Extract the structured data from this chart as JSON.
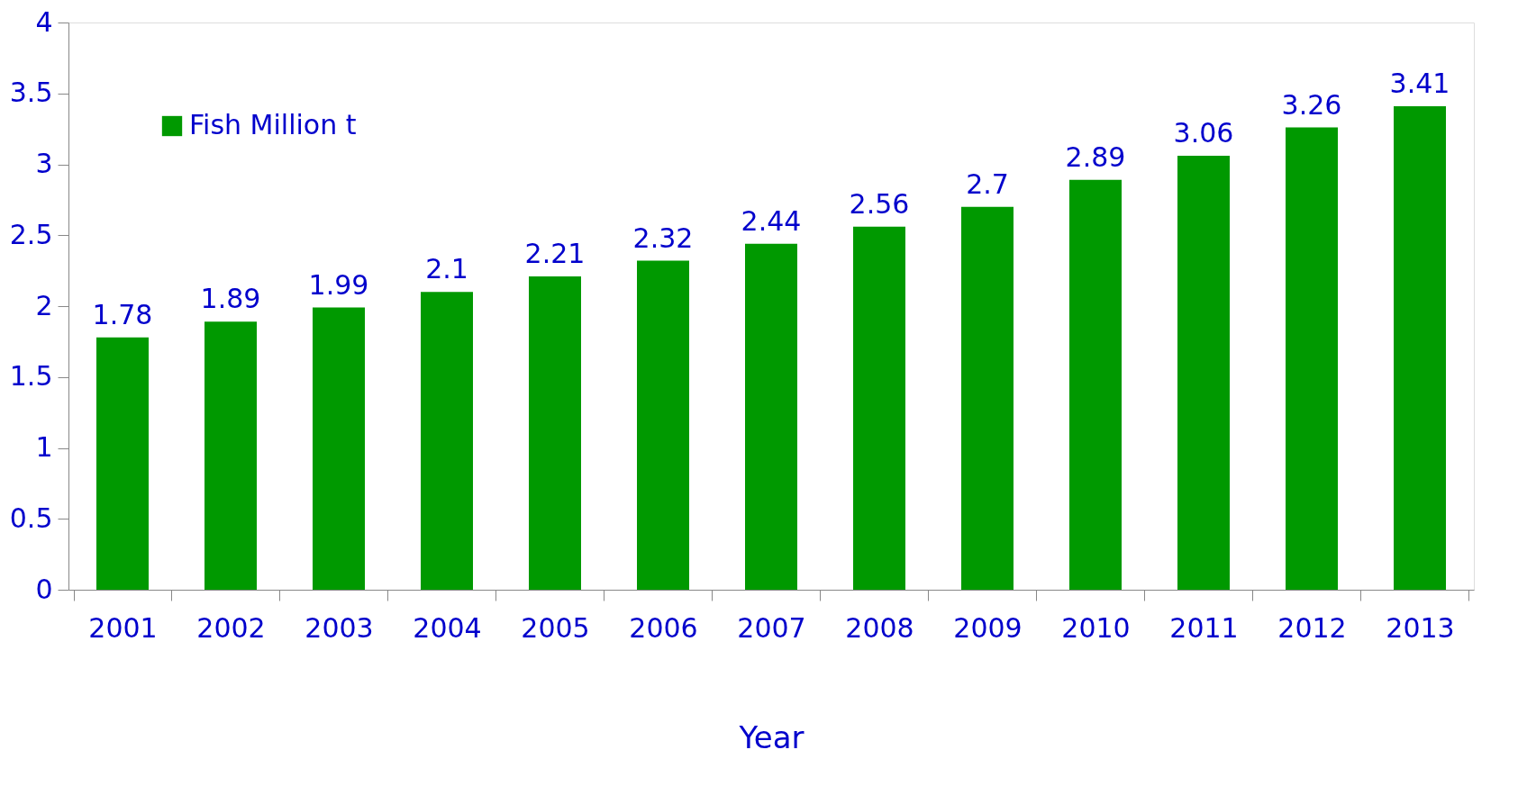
{
  "chart_data": {
    "type": "bar",
    "xlabel": "Year",
    "categories": [
      "2001",
      "2002",
      "2003",
      "2004",
      "2005",
      "2006",
      "2007",
      "2008",
      "2009",
      "2010",
      "2011",
      "2012",
      "2013"
    ],
    "series": [
      {
        "name": "Fish Million t",
        "color": "#009900",
        "values": [
          1.78,
          1.89,
          1.99,
          2.1,
          2.21,
          2.32,
          2.44,
          2.56,
          2.7,
          2.89,
          3.06,
          3.26,
          3.41
        ]
      }
    ],
    "ylim": [
      0,
      4
    ],
    "yticks": [
      0,
      0.5,
      1,
      1.5,
      2,
      2.5,
      3,
      3.5,
      4
    ],
    "data_labels": true,
    "grid": false,
    "legend": "top left"
  }
}
